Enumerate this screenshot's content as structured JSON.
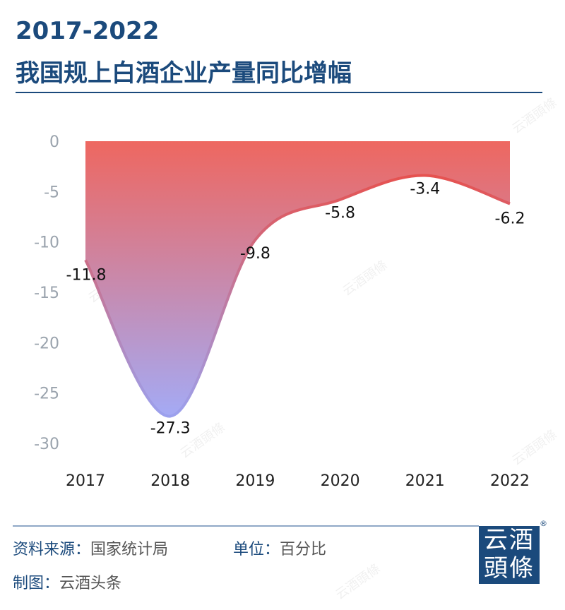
{
  "header": {
    "title_line1": "2017-2022",
    "title_line2": "我国规上白酒企业产量同比增幅"
  },
  "footer": {
    "source_label": "资料来源：",
    "source_value": "国家统计局",
    "unit_label": "单位：",
    "unit_value": "百分比",
    "maker_label": "制图：",
    "maker_value": "云酒头条"
  },
  "logo": {
    "text_line1": "云酒",
    "text_line2": "頭條",
    "registered": "®"
  },
  "watermark": "云酒頭條",
  "colors": {
    "title": "#1b4a7c",
    "area_top": "#ee6760",
    "area_bottom": "#a3abf7",
    "axis_text": "#9aa3ad"
  },
  "chart_data": {
    "type": "area",
    "title": "2017-2022 我国规上白酒企业产量同比增幅",
    "categories": [
      "2017",
      "2018",
      "2019",
      "2020",
      "2021",
      "2022"
    ],
    "values": [
      -11.8,
      -27.3,
      -9.8,
      -5.8,
      -3.4,
      -6.2
    ],
    "data_labels": [
      "-11.8",
      "-27.3",
      "-9.8",
      "-5.8",
      "-3.4",
      "-6.2"
    ],
    "ylim": [
      -30,
      0
    ],
    "yticks": [
      "0",
      "-5",
      "-10",
      "-15",
      "-20",
      "-25",
      "-30"
    ],
    "grid": false,
    "smooth": true,
    "unit": "百分比"
  }
}
